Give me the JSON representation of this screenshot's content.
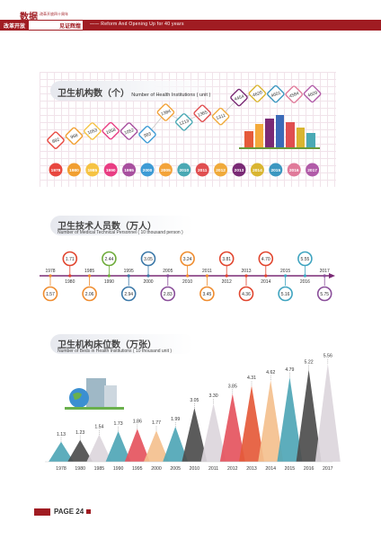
{
  "header": {
    "brand_chars": "数据",
    "brand_small": "改革开放四十周年",
    "tag_left": "改革开放",
    "tag_right": "见证辉煌",
    "subtitle": "—— Reform And Opening Up for 40 years"
  },
  "footer": {
    "page": "PAGE 24"
  },
  "chart_data": [
    {
      "id": "institutions",
      "type": "line",
      "title_cn": "卫生机构数（个）",
      "title_en": "Number of Health Institutions ( unit )",
      "categories": [
        "1978",
        "1980",
        "1985",
        "1990",
        "1995",
        "2000",
        "2005",
        "2010",
        "2011",
        "2012",
        "2013",
        "2014",
        "2015",
        "2016",
        "2017"
      ],
      "values": [
        892,
        968,
        1053,
        1058,
        1052,
        993,
        1384,
        1213,
        1365,
        1311,
        4454,
        4620,
        4601,
        4584,
        4609
      ],
      "colors": [
        "#e8473f",
        "#f19f31",
        "#f6c343",
        "#e93d83",
        "#a8509f",
        "#3e9bd5",
        "#f3a33a",
        "#4aa9b4",
        "#e04e50",
        "#f0aa3b",
        "#7a2a75",
        "#d9b531",
        "#3c97c0",
        "#e07a9a",
        "#b15ba8"
      ]
    },
    {
      "id": "personnel",
      "type": "line",
      "title_cn": "卫生技术人员数（万人）",
      "title_en": "Number of Medical Technical Personnel ( 10 thousand person )",
      "categories": [
        "1978",
        "1980",
        "1985",
        "1990",
        "1995",
        "2000",
        "2005",
        "2010",
        "2011",
        "2012",
        "2013",
        "2014",
        "2015",
        "2016",
        "2017"
      ],
      "values": [
        1.57,
        1.71,
        2.06,
        2.44,
        2.94,
        3.05,
        2.83,
        3.24,
        3.45,
        3.81,
        4.36,
        4.7,
        5.16,
        5.55,
        5.75
      ],
      "colors": [
        "#ef8c2e",
        "#e1452e",
        "#ef8c2e",
        "#6eab3a",
        "#3b78a8",
        "#3b78a8",
        "#8a4e9a",
        "#ef8c2e",
        "#ef8c2e",
        "#e1452e",
        "#e1452e",
        "#e1452e",
        "#3fa4c0",
        "#3fa4c0",
        "#8a4e9a"
      ]
    },
    {
      "id": "beds",
      "type": "area",
      "title_cn": "卫生机构床位数（万张）",
      "title_en": "Number of Beds in Health Institutions ( 10 thousand unit )",
      "categories": [
        "1978",
        "1980",
        "1985",
        "1990",
        "1995",
        "2000",
        "2005",
        "2010",
        "2011",
        "2012",
        "2013",
        "2014",
        "2015",
        "2016",
        "2017"
      ],
      "values": [
        1.13,
        1.23,
        1.54,
        1.73,
        1.86,
        1.77,
        1.99,
        3.05,
        3.3,
        3.85,
        4.31,
        4.62,
        4.79,
        5.22,
        5.56
      ],
      "colors": [
        "#4fa6b6",
        "#4d4d4d",
        "#dcd6dc",
        "#4fa6b6",
        "#e5545e",
        "#f4c08e",
        "#4fa6b6",
        "#4d4d4d",
        "#dcd6dc",
        "#e5545e",
        "#e55a3a",
        "#f4c08e",
        "#4fa6b6",
        "#4d4d4d",
        "#dcd6dc"
      ]
    }
  ]
}
